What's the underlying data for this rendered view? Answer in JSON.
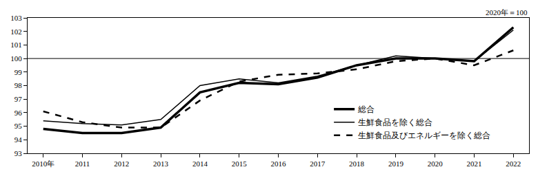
{
  "chart_data": {
    "type": "line",
    "subtitle": "2020年＝100",
    "categories": [
      "2010年",
      "2011",
      "2012",
      "2013",
      "2014",
      "2015",
      "2016",
      "2017",
      "2018",
      "2019",
      "2020",
      "2021",
      "2022"
    ],
    "series": [
      {
        "name": "総合",
        "color": "#000000",
        "line_style": "solid",
        "values": [
          94.8,
          94.5,
          94.5,
          94.9,
          97.5,
          98.2,
          98.1,
          98.6,
          99.5,
          100.0,
          100.0,
          99.8,
          102.3
        ]
      },
      {
        "name": "生鮮食品を除く総合",
        "color": "#000000",
        "line_style": "solid",
        "values": [
          95.4,
          95.2,
          95.1,
          95.5,
          98.0,
          98.5,
          98.2,
          98.7,
          99.5,
          100.2,
          100.0,
          99.8,
          102.1
        ]
      },
      {
        "name": "生鮮食品及びエネルギーを除く総合",
        "color": "#000000",
        "line_style": "dash",
        "values": [
          96.1,
          95.3,
          94.9,
          94.9,
          96.9,
          98.3,
          98.8,
          98.9,
          99.2,
          99.8,
          100.0,
          99.5,
          100.6
        ]
      }
    ],
    "reference_line": 100,
    "ylim": [
      93,
      103
    ],
    "yticks": [
      93,
      94,
      95,
      96,
      97,
      98,
      99,
      100,
      101,
      102,
      103
    ],
    "grid": false,
    "legend": "lower right"
  }
}
